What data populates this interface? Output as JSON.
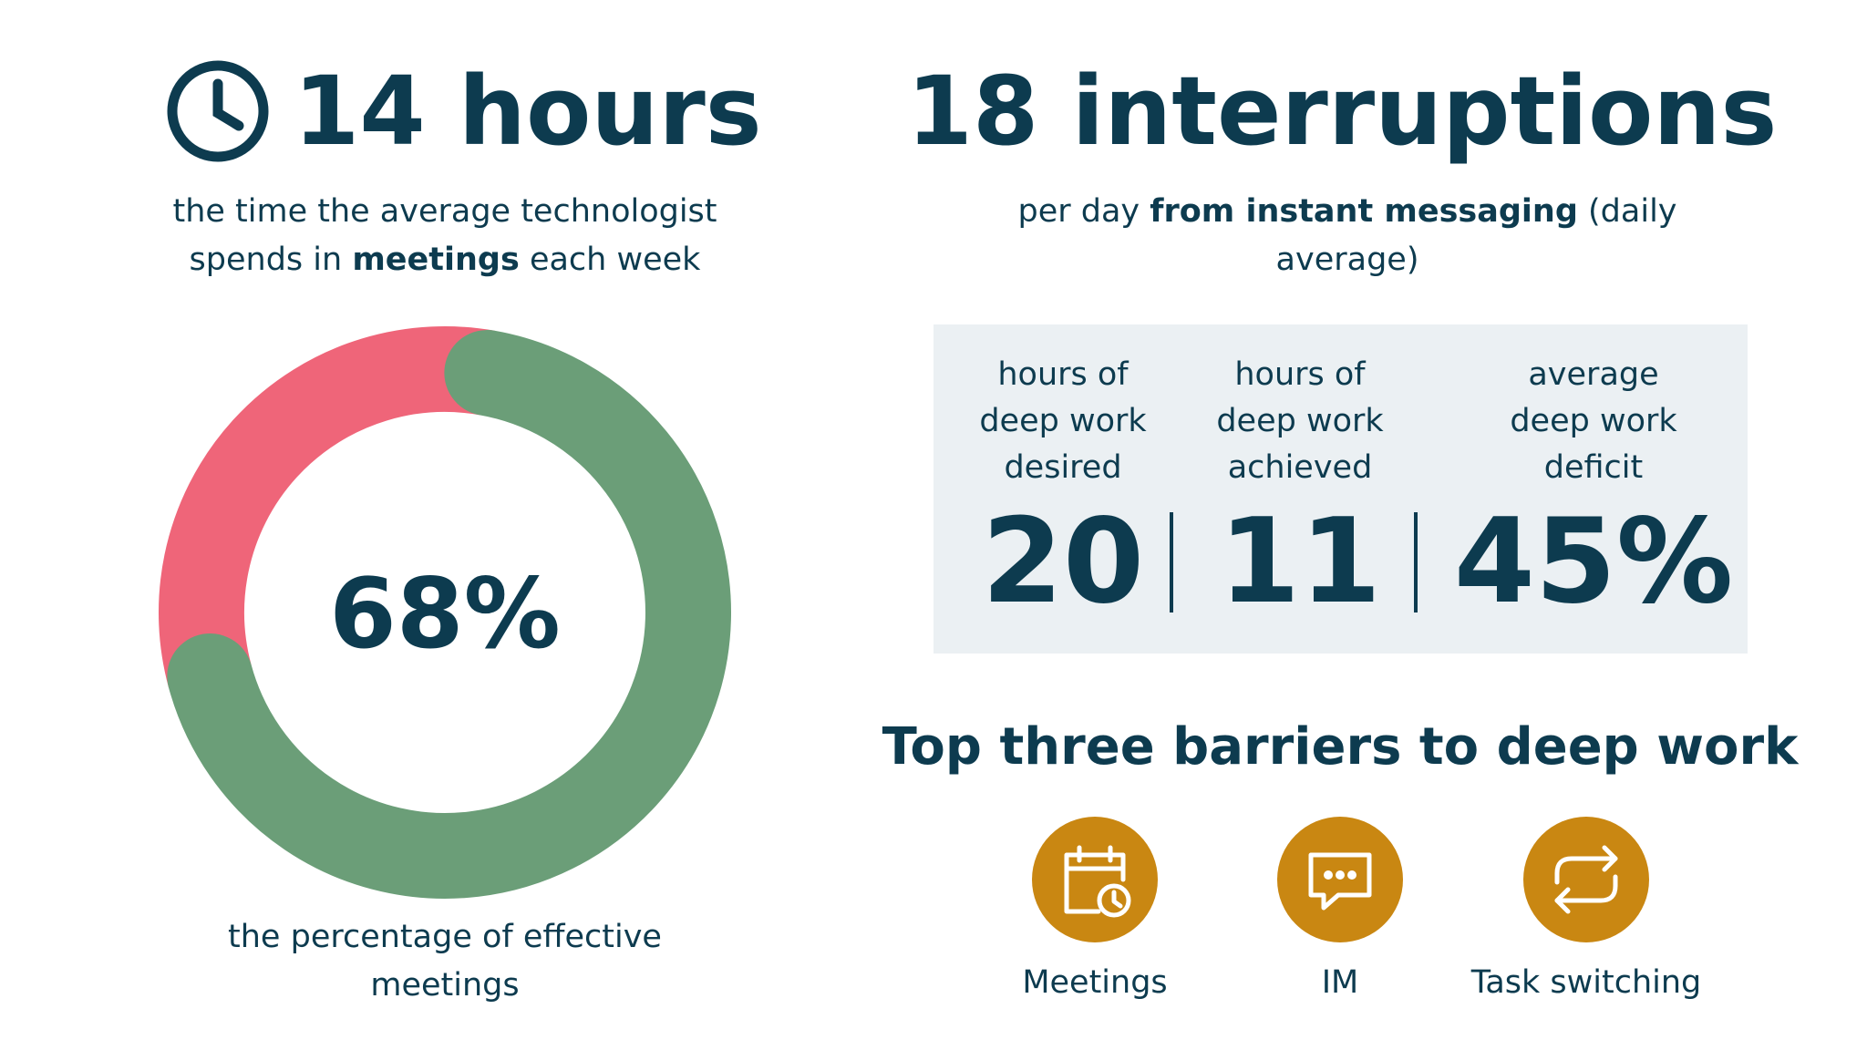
{
  "left": {
    "headline": "14 hours",
    "subtitle_line1": "the time the average technologist",
    "subtitle_line2": [
      "spends in ",
      "meetings",
      " each week"
    ]
  },
  "chart_data": {
    "type": "donut",
    "values": [
      68,
      32
    ],
    "colors": [
      "#6b9e78",
      "#ef6579"
    ],
    "value_labels": [
      "68%",
      null
    ],
    "caption_lines": [
      "the percentage of effective",
      "meetings"
    ]
  },
  "right": {
    "headline": "18 interruptions",
    "subtitle_line1": [
      "per day ",
      "from instant messaging",
      " (daily"
    ],
    "subtitle_line2": "average)"
  },
  "stats": [
    {
      "label_lines": [
        "hours of",
        "deep work",
        "desired"
      ],
      "value": "20"
    },
    {
      "label_lines": [
        "hours of",
        "deep work",
        "achieved"
      ],
      "value": "11"
    },
    {
      "label_lines": [
        "average",
        "deep work",
        "deficit"
      ],
      "value": "45%"
    }
  ],
  "barriers": {
    "title": "Top three barriers to deep work",
    "items": [
      "Meetings",
      "IM",
      "Task switching"
    ]
  }
}
